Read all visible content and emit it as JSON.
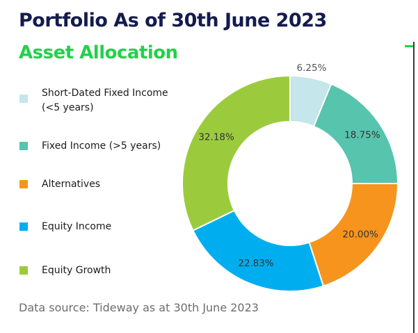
{
  "header": {
    "title": "Portfolio As of 30th June 2023",
    "subtitle": "Asset Allocation"
  },
  "colors": {
    "title": "#141b4d",
    "subtitle": "#22d14a",
    "accent_mark": "#22d14a"
  },
  "chart_data": {
    "type": "pie",
    "variant": "donut",
    "start": "top",
    "direction": "clockwise",
    "legend_position": "left",
    "categories": [
      "Short-Dated Fixed Income (<5 years)",
      "Fixed Income (>5 years)",
      "Alternatives",
      "Equity Income",
      "Equity Growth"
    ],
    "values": [
      6.25,
      18.75,
      20.0,
      22.83,
      32.18
    ],
    "labels": [
      "6.25%",
      "18.75%",
      "20.00%",
      "22.83%",
      "32.18%"
    ],
    "colors": [
      "#c5e6ea",
      "#57c4ad",
      "#f6941d",
      "#00aeef",
      "#9bcb3c"
    ]
  },
  "legend": [
    {
      "lines": [
        "Short-Dated Fixed Income",
        "(<5 years)"
      ],
      "color": "#c5e6ea"
    },
    {
      "lines": [
        "Fixed Income (>5 years)"
      ],
      "color": "#57c4ad"
    },
    {
      "lines": [
        "Alternatives"
      ],
      "color": "#f6941d"
    },
    {
      "lines": [
        "Equity Income"
      ],
      "color": "#00aeef"
    },
    {
      "lines": [
        "Equity Growth"
      ],
      "color": "#9bcb3c"
    }
  ],
  "footer": {
    "source": "Data source: Tideway as at 30th June 2023"
  }
}
